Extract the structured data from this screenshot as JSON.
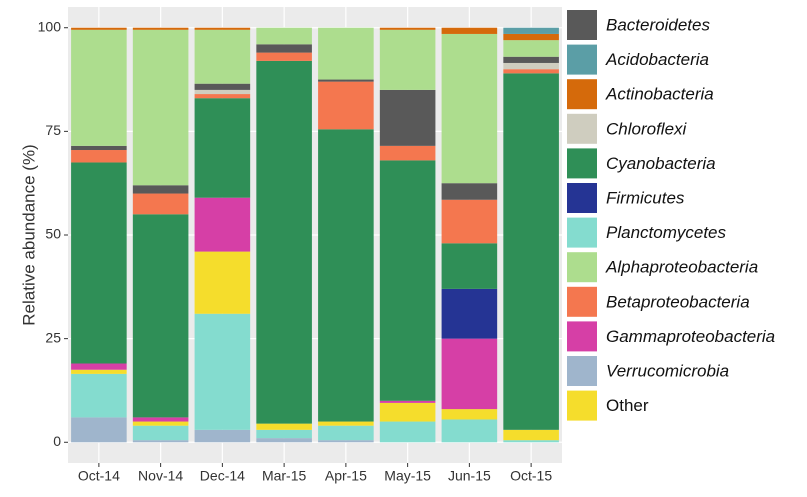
{
  "chart_data": {
    "type": "stacked_bar",
    "y_label": "Relative abundance (%)",
    "categories": [
      "Oct-14",
      "Nov-14",
      "Dec-14",
      "Mar-15",
      "Apr-15",
      "May-15",
      "Jun-15",
      "Oct-15"
    ],
    "ylim": [
      -5,
      105
    ],
    "yticks": [
      0,
      25,
      50,
      75,
      100
    ],
    "grid": true,
    "series": [
      {
        "name": "Bacteroidetes",
        "color": "#595959",
        "values": [
          1,
          2,
          1.5,
          2,
          0.5,
          13.5,
          4,
          1.5
        ]
      },
      {
        "name": "Acidobacteria",
        "color": "#5b9ea6",
        "values": [
          0,
          0,
          0,
          0,
          0,
          0,
          0,
          1.5
        ]
      },
      {
        "name": "Actinobacteria",
        "color": "#d56a0b",
        "values": [
          0.5,
          0.5,
          0.5,
          0,
          0,
          0.5,
          1.5,
          1.5
        ]
      },
      {
        "name": "Chloroflexi",
        "color": "#cfcdbf",
        "values": [
          0,
          0,
          1,
          0,
          0,
          0,
          0,
          1.5
        ]
      },
      {
        "name": "Cyanobacteria",
        "color": "#2f8f57",
        "values": [
          48.5,
          49,
          24,
          87.5,
          70.5,
          58,
          11,
          86
        ]
      },
      {
        "name": "Firmicutes",
        "color": "#253494",
        "values": [
          0,
          0,
          0,
          0,
          0,
          0,
          12,
          0
        ]
      },
      {
        "name": "Planctomycetes",
        "color": "#84dccf",
        "values": [
          10.5,
          3.5,
          28,
          2,
          3.5,
          5,
          5.5,
          0.5
        ]
      },
      {
        "name": "Alphaproteobacteria",
        "color": "#addd8e",
        "values": [
          28,
          37.5,
          13,
          4,
          12.5,
          14.5,
          36,
          4
        ]
      },
      {
        "name": "Betaproteobacteria",
        "color": "#f4774f",
        "values": [
          3,
          5,
          1,
          2,
          11.5,
          3.5,
          10.5,
          1
        ]
      },
      {
        "name": "Gammaproteobacteria",
        "color": "#d63fa6",
        "values": [
          1.5,
          1,
          13,
          0,
          0,
          0.5,
          17,
          0
        ]
      },
      {
        "name": "Verrucomicrobia",
        "color": "#9fb5cc",
        "values": [
          6,
          0.5,
          3,
          1,
          0.5,
          0,
          0,
          0
        ]
      },
      {
        "name": "Other",
        "color": "#f5dd2c",
        "values": [
          1,
          1,
          15,
          1.5,
          1,
          4.5,
          2.5,
          2.5
        ]
      }
    ]
  }
}
